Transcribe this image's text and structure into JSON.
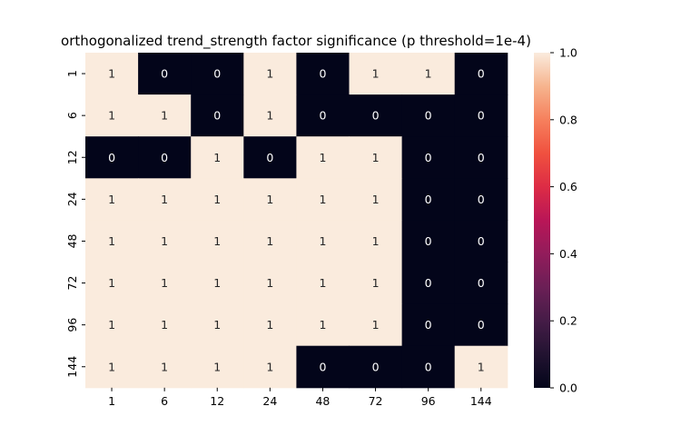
{
  "chart_data": {
    "type": "heatmap",
    "title": "orthogonalized trend_strength factor significance (p threshold=1e-4)",
    "xlabel": "",
    "ylabel": "",
    "x_categories": [
      "1",
      "6",
      "12",
      "24",
      "48",
      "72",
      "96",
      "144"
    ],
    "y_categories": [
      "1",
      "6",
      "12",
      "24",
      "48",
      "72",
      "96",
      "144"
    ],
    "values": [
      [
        1,
        0,
        0,
        1,
        0,
        1,
        1,
        0
      ],
      [
        1,
        1,
        0,
        1,
        0,
        0,
        0,
        0
      ],
      [
        0,
        0,
        1,
        0,
        1,
        1,
        0,
        0
      ],
      [
        1,
        1,
        1,
        1,
        1,
        1,
        0,
        0
      ],
      [
        1,
        1,
        1,
        1,
        1,
        1,
        0,
        0
      ],
      [
        1,
        1,
        1,
        1,
        1,
        1,
        0,
        0
      ],
      [
        1,
        1,
        1,
        1,
        1,
        1,
        0,
        0
      ],
      [
        1,
        1,
        1,
        1,
        0,
        0,
        0,
        1
      ]
    ],
    "colorbar": {
      "range": [
        0.0,
        1.0
      ],
      "ticks": [
        "0.0",
        "0.2",
        "0.4",
        "0.6",
        "0.8",
        "1.0"
      ],
      "colormap": "rocket"
    },
    "colors": {
      "low": "#03051a",
      "high": "#faebdd",
      "label_on_low": "#ffffff",
      "label_on_high": "#262626"
    }
  }
}
